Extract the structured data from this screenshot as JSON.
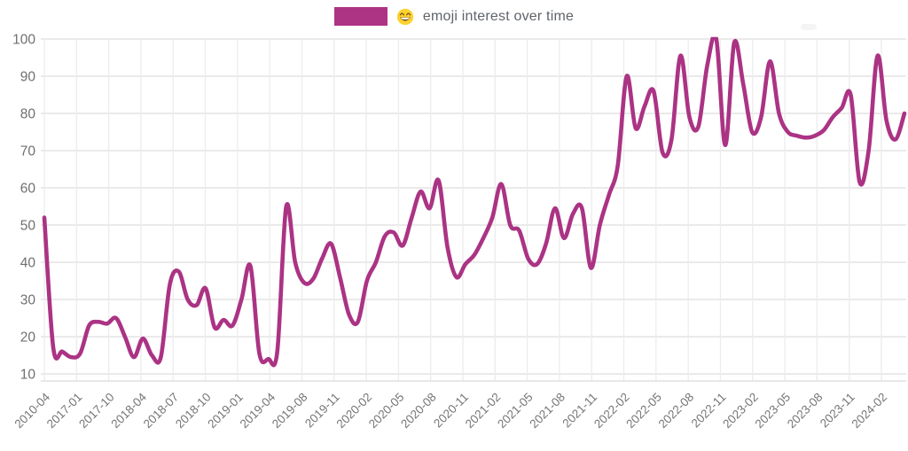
{
  "legend": {
    "swatch_color": "#ad3384",
    "emoji": "😄",
    "emoji_icon": "grinning-face-with-smiling-eyes",
    "label": "emoji interest over time"
  },
  "chart_data": {
    "type": "line",
    "title": "😄 emoji interest over time",
    "legend_position": "top-center",
    "grid": true,
    "ylim": [
      10,
      100
    ],
    "y_tick_labels": [
      100,
      90,
      80,
      70,
      60,
      50,
      40,
      30,
      20,
      10
    ],
    "x_tick_labels": [
      "2010-04",
      "2017-01",
      "2017-10",
      "2018-04",
      "2018-07",
      "2018-10",
      "2019-01",
      "2019-04",
      "2019-08",
      "2019-11",
      "2020-02",
      "2020-05",
      "2020-08",
      "2020-11",
      "2021-02",
      "2021-05",
      "2021-08",
      "2021-11",
      "2022-02",
      "2022-05",
      "2022-08",
      "2022-11",
      "2023-02",
      "2023-05",
      "2023-08",
      "2023-11",
      "2024-02"
    ],
    "series": [
      {
        "name": "emoji interest over time",
        "color": "#ab3384",
        "values": [
          52,
          17,
          16,
          14.5,
          15.5,
          23,
          24,
          23.5,
          25,
          20,
          14.5,
          19.5,
          15,
          14.5,
          34,
          37.5,
          30,
          28.5,
          33,
          22.5,
          24.5,
          23,
          30,
          39,
          15.5,
          14,
          16,
          55,
          40,
          34.5,
          35.5,
          41,
          45,
          36,
          26,
          24,
          35,
          40,
          47,
          48,
          44.5,
          52,
          59,
          54.5,
          62,
          44,
          36,
          39.5,
          42,
          46.5,
          52,
          61,
          50,
          48.5,
          41,
          39.5,
          45,
          54.5,
          46.5,
          53,
          54.5,
          38.5,
          50,
          58,
          66,
          90,
          76,
          82,
          86,
          69.5,
          73,
          95.5,
          79,
          76.5,
          93,
          100,
          71.5,
          99,
          88,
          75,
          79,
          94,
          80,
          75,
          74,
          73.5,
          74,
          75.5,
          79,
          81.5,
          85,
          61.5,
          70,
          95.5,
          78,
          73,
          80
        ]
      }
    ],
    "axis_label_color": "#757575",
    "grid_color": "#e4e4e4"
  }
}
